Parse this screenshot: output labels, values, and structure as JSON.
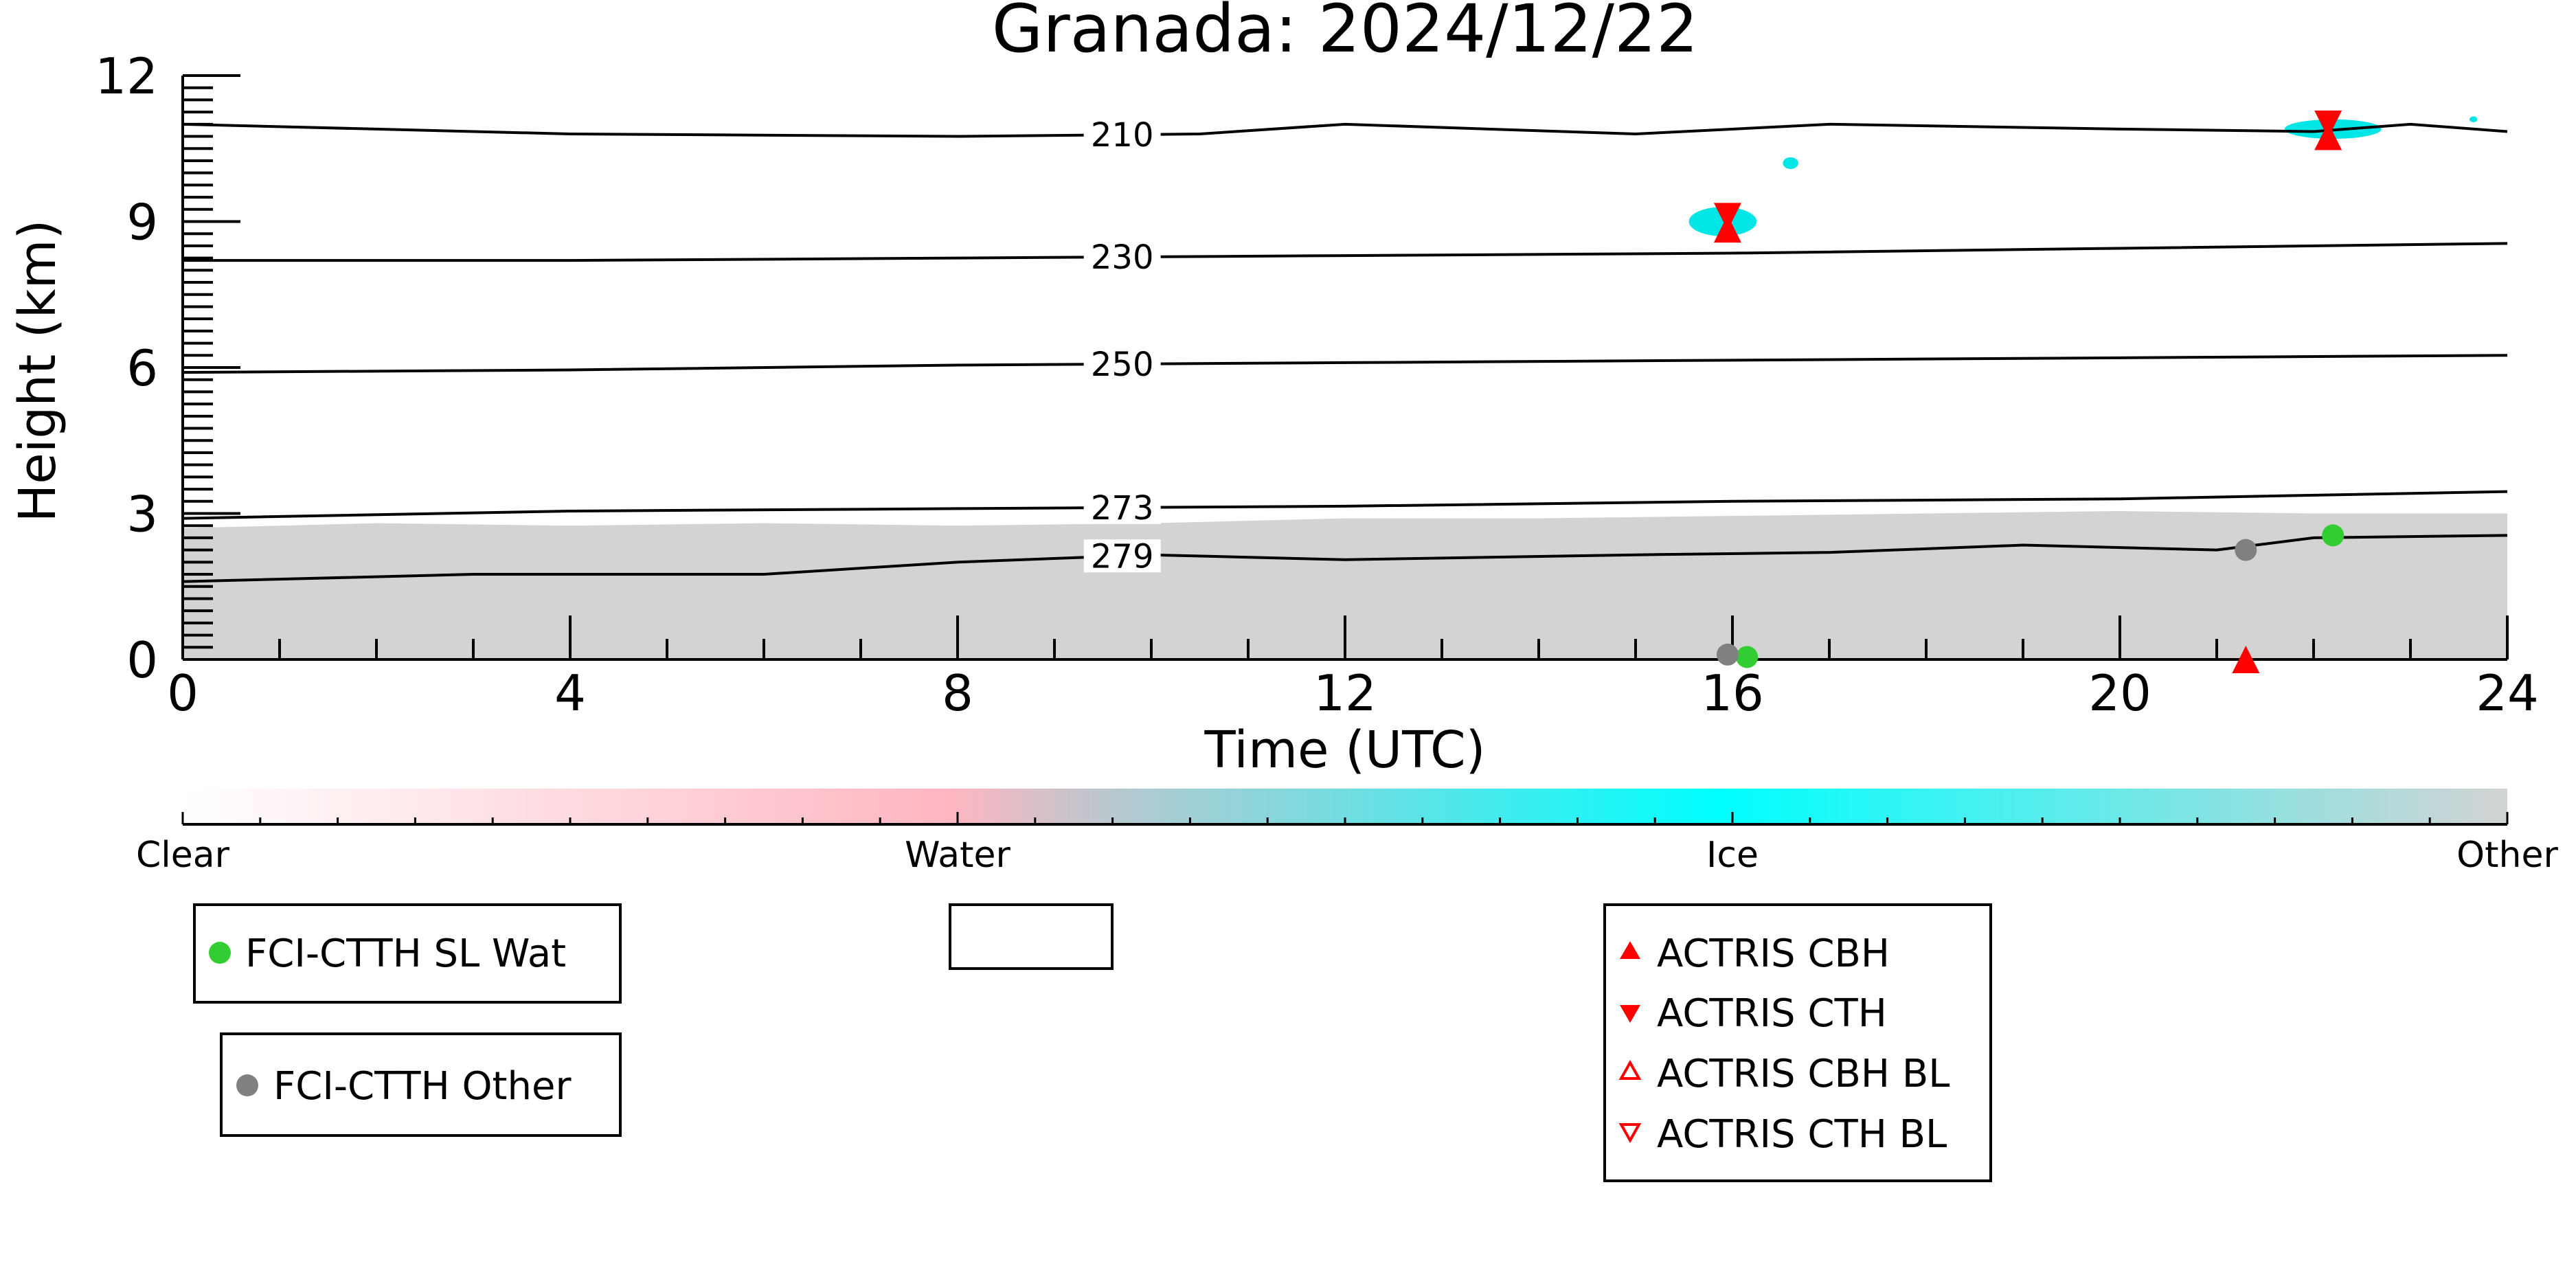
{
  "chart_data": {
    "type": "scatter",
    "title": "Granada: 2024/12/22",
    "xlabel": "Time (UTC)",
    "ylabel": "Height (km)",
    "xlim": [
      0,
      24
    ],
    "ylim": [
      0,
      12
    ],
    "x_ticks": [
      "0",
      "4",
      "8",
      "12",
      "16",
      "20",
      "24"
    ],
    "y_ticks": [
      "0",
      "3",
      "6",
      "9",
      "12"
    ],
    "grid": false,
    "contours": [
      {
        "label": "210",
        "label_x": 9.7,
        "points": [
          [
            0,
            11.0
          ],
          [
            4,
            10.8
          ],
          [
            8,
            10.75
          ],
          [
            10.5,
            10.8
          ],
          [
            12,
            11.0
          ],
          [
            15,
            10.8
          ],
          [
            17,
            11.0
          ],
          [
            20,
            10.9
          ],
          [
            22,
            10.85
          ],
          [
            23,
            11.0
          ],
          [
            24,
            10.85
          ]
        ]
      },
      {
        "label": "230",
        "label_x": 9.7,
        "points": [
          [
            0,
            8.2
          ],
          [
            4,
            8.2
          ],
          [
            8,
            8.25
          ],
          [
            12,
            8.3
          ],
          [
            16,
            8.35
          ],
          [
            20,
            8.45
          ],
          [
            24,
            8.55
          ]
        ]
      },
      {
        "label": "250",
        "label_x": 9.7,
        "points": [
          [
            0,
            5.9
          ],
          [
            4,
            5.95
          ],
          [
            8,
            6.05
          ],
          [
            12,
            6.1
          ],
          [
            16,
            6.15
          ],
          [
            20,
            6.2
          ],
          [
            24,
            6.25
          ]
        ]
      },
      {
        "label": "273",
        "label_x": 9.7,
        "points": [
          [
            0,
            2.9
          ],
          [
            4,
            3.05
          ],
          [
            8,
            3.1
          ],
          [
            12,
            3.15
          ],
          [
            16,
            3.25
          ],
          [
            20,
            3.3
          ],
          [
            24,
            3.45
          ]
        ]
      },
      {
        "label": "279",
        "label_x": 9.7,
        "points": [
          [
            0,
            1.6
          ],
          [
            3,
            1.75
          ],
          [
            6,
            1.75
          ],
          [
            8,
            2.0
          ],
          [
            10,
            2.15
          ],
          [
            12,
            2.05
          ],
          [
            15,
            2.15
          ],
          [
            17,
            2.2
          ],
          [
            19,
            2.35
          ],
          [
            21,
            2.25
          ],
          [
            22,
            2.5
          ],
          [
            24,
            2.55
          ]
        ]
      }
    ],
    "other_region": {
      "color": "#d3d3d3",
      "points": [
        [
          0,
          2.7
        ],
        [
          2,
          2.8
        ],
        [
          4,
          2.75
        ],
        [
          6,
          2.8
        ],
        [
          8,
          2.75
        ],
        [
          10,
          2.8
        ],
        [
          12,
          2.9
        ],
        [
          14,
          2.9
        ],
        [
          16,
          2.95
        ],
        [
          18,
          3.0
        ],
        [
          20,
          3.05
        ],
        [
          22,
          3.0
        ],
        [
          24,
          3.0
        ]
      ]
    },
    "ice_clouds": [
      {
        "x": 15.9,
        "y": 9.0,
        "dx": 0.35,
        "dy": 0.3
      },
      {
        "x": 16.6,
        "y": 10.2,
        "dx": 0.08,
        "dy": 0.12
      },
      {
        "x": 22.2,
        "y": 10.9,
        "dx": 0.5,
        "dy": 0.2
      },
      {
        "x": 23.65,
        "y": 11.1,
        "dx": 0.04,
        "dy": 0.06
      }
    ],
    "series": [
      {
        "name": "FCI-CTTH SL Wat",
        "marker": "circle",
        "color": "#32cd32",
        "points": [
          [
            16.15,
            0.05
          ],
          [
            22.2,
            2.55
          ]
        ]
      },
      {
        "name": "FCI-CTTH Other",
        "marker": "circle",
        "color": "#808080",
        "points": [
          [
            15.95,
            0.1
          ],
          [
            21.3,
            2.25
          ]
        ]
      },
      {
        "name": "ACTRIS CBH",
        "marker": "triangle-up",
        "color": "#ff0000",
        "points": [
          [
            15.95,
            8.85
          ],
          [
            22.15,
            10.75
          ],
          [
            21.3,
            0.0
          ]
        ]
      },
      {
        "name": "ACTRIS CTH",
        "marker": "triangle-down",
        "color": "#ff0000",
        "points": [
          [
            15.95,
            9.1
          ],
          [
            22.15,
            11.0
          ]
        ]
      },
      {
        "name": "ACTRIS CBH BL",
        "marker": "triangle-up-open",
        "color": "#ff0000",
        "points": []
      },
      {
        "name": "ACTRIS CTH BL",
        "marker": "triangle-down-open",
        "color": "#ff0000",
        "points": []
      }
    ],
    "colorbar": {
      "labels": [
        "Clear",
        "Water",
        "Ice",
        "Other"
      ],
      "stops": [
        {
          "offset": 0,
          "color": "#ffffff"
        },
        {
          "offset": 0.33,
          "color": "#ffb6c1"
        },
        {
          "offset": 0.4,
          "color": "#b8c8cf"
        },
        {
          "offset": 0.66,
          "color": "#00ffff"
        },
        {
          "offset": 1,
          "color": "#d3d3d3"
        }
      ]
    }
  }
}
